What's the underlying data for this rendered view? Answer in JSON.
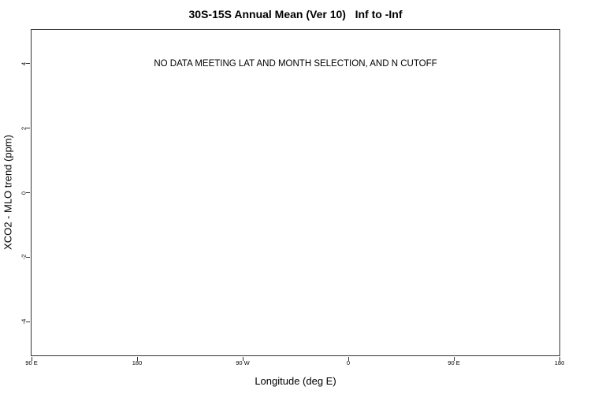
{
  "chart_data": {
    "type": "scatter",
    "title": "30S-15S Annual Mean (Ver 10)   Inf to -Inf",
    "annotation": "NO DATA MEETING LAT AND MONTH SELECTION, AND N CUTOFF",
    "xlabel": "Longitude (deg E)",
    "ylabel": "XCO2 - MLO trend (ppm)",
    "x_ticks": [
      {
        "label": "90 E",
        "pos": 0.0
      },
      {
        "label": "180",
        "pos": 0.2
      },
      {
        "label": "90 W",
        "pos": 0.4
      },
      {
        "label": "0",
        "pos": 0.6
      },
      {
        "label": "90 E",
        "pos": 0.8
      },
      {
        "label": "180",
        "pos": 1.0
      }
    ],
    "y_ticks": [
      4,
      2,
      0,
      -2,
      -4
    ],
    "ylim": [
      -5.05,
      5.05
    ],
    "series": [],
    "grid": false,
    "legend": null,
    "annotation_y_value": 4,
    "axis_color": "#333333",
    "text_color": "#000000",
    "background": "#ffffff"
  }
}
